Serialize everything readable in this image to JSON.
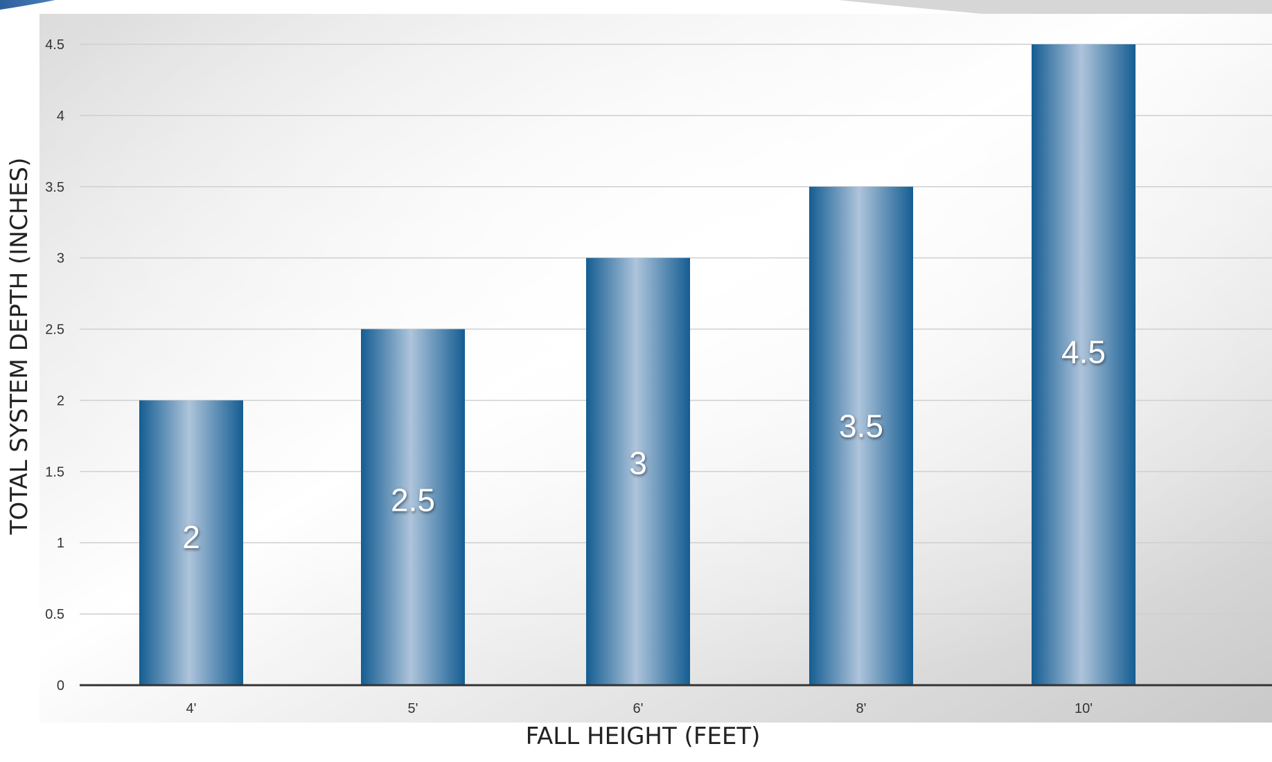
{
  "chart_data": {
    "type": "bar",
    "categories": [
      "4'",
      "5'",
      "6'",
      "8'",
      "10'"
    ],
    "values": [
      2,
      2.5,
      3,
      3.5,
      4.5
    ],
    "data_labels": [
      "2",
      "2.5",
      "3",
      "3.5",
      "4.5"
    ],
    "xlabel": "FALL HEIGHT (FEET)",
    "ylabel": "TOTAL SYSTEM DEPTH (INCHES)",
    "ylim": [
      0,
      4.5
    ],
    "yticks": [
      "0",
      "0.5",
      "1",
      "1.5",
      "2",
      "2.5",
      "3",
      "3.5",
      "4",
      "4.5"
    ],
    "grid": true,
    "legend": "none",
    "colors": {
      "bar_dark": "#1a6296",
      "bar_light": "#a9c0d8",
      "gridline": "#cfcfcf",
      "axis": "#333333",
      "accent_banner": "#2c5f9c"
    }
  }
}
